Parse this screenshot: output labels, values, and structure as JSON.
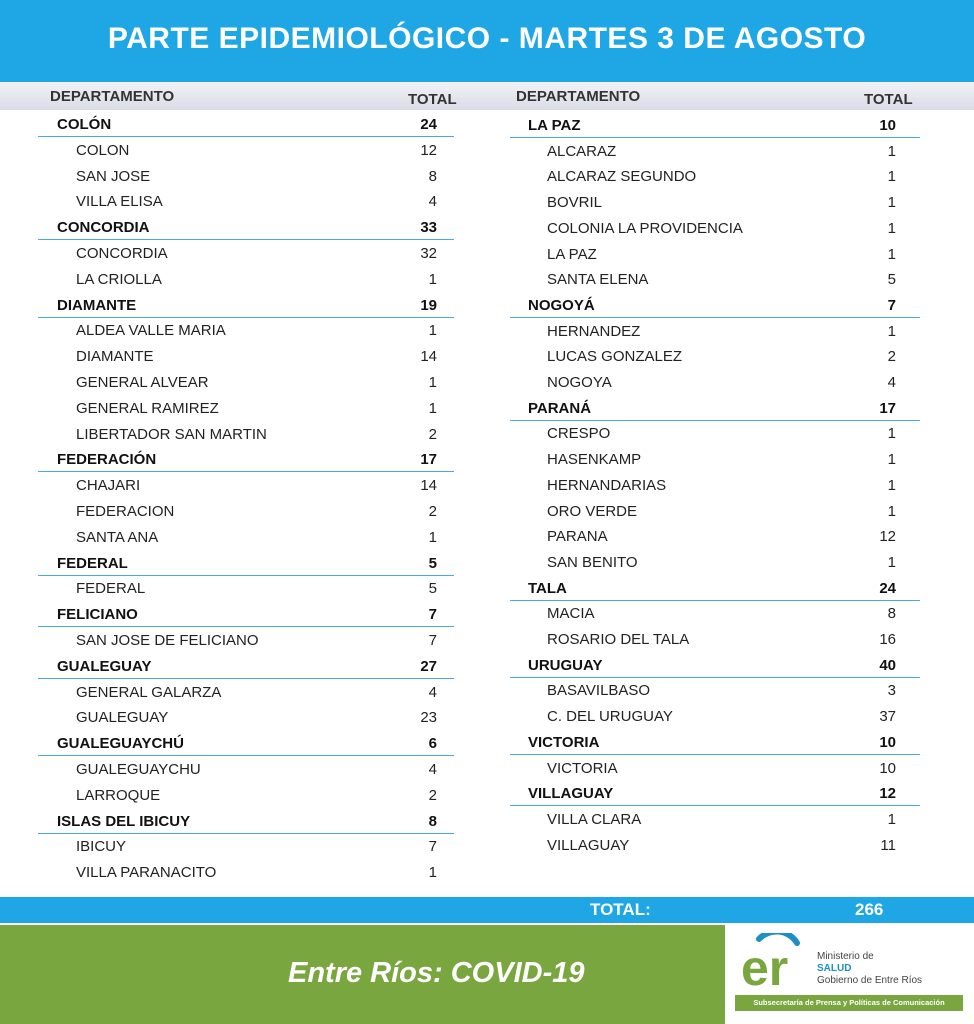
{
  "title": "PARTE EPIDEMIOLÓGICO - MARTES 3 DE AGOSTO",
  "headers": {
    "departamento": "DEPARTAMENTO",
    "total": "TOTAL"
  },
  "left_rows": [
    {
      "name": "COLÓN",
      "value": "24",
      "dept": true
    },
    {
      "name": "COLON",
      "value": "12"
    },
    {
      "name": "SAN JOSE",
      "value": "8"
    },
    {
      "name": "VILLA ELISA",
      "value": "4"
    },
    {
      "name": "CONCORDIA",
      "value": "33",
      "dept": true
    },
    {
      "name": "CONCORDIA",
      "value": "32"
    },
    {
      "name": "LA CRIOLLA",
      "value": "1"
    },
    {
      "name": "DIAMANTE",
      "value": "19",
      "dept": true
    },
    {
      "name": "ALDEA VALLE MARIA",
      "value": "1"
    },
    {
      "name": "DIAMANTE",
      "value": "14"
    },
    {
      "name": "GENERAL ALVEAR",
      "value": "1"
    },
    {
      "name": "GENERAL RAMIREZ",
      "value": "1"
    },
    {
      "name": "LIBERTADOR SAN MARTIN",
      "value": "2"
    },
    {
      "name": "FEDERACIÓN",
      "value": "17",
      "dept": true
    },
    {
      "name": "CHAJARI",
      "value": "14"
    },
    {
      "name": "FEDERACION",
      "value": "2"
    },
    {
      "name": "SANTA ANA",
      "value": "1"
    },
    {
      "name": "FEDERAL",
      "value": "5",
      "dept": true
    },
    {
      "name": "FEDERAL",
      "value": "5"
    },
    {
      "name": "FELICIANO",
      "value": "7",
      "dept": true
    },
    {
      "name": "SAN JOSE DE FELICIANO",
      "value": "7"
    },
    {
      "name": "GUALEGUAY",
      "value": "27",
      "dept": true
    },
    {
      "name": "GENERAL GALARZA",
      "value": "4"
    },
    {
      "name": "GUALEGUAY",
      "value": "23"
    },
    {
      "name": "GUALEGUAYCHÚ",
      "value": "6",
      "dept": true
    },
    {
      "name": "GUALEGUAYCHU",
      "value": "4"
    },
    {
      "name": "LARROQUE",
      "value": "2"
    },
    {
      "name": "ISLAS DEL IBICUY",
      "value": "8",
      "dept": true
    },
    {
      "name": "IBICUY",
      "value": "7"
    },
    {
      "name": "VILLA PARANACITO",
      "value": "1"
    }
  ],
  "right_rows": [
    {
      "name": "LA PAZ",
      "value": "10",
      "dept": true
    },
    {
      "name": "ALCARAZ",
      "value": "1"
    },
    {
      "name": "ALCARAZ SEGUNDO",
      "value": "1"
    },
    {
      "name": "BOVRIL",
      "value": "1"
    },
    {
      "name": "COLONIA LA PROVIDENCIA",
      "value": "1"
    },
    {
      "name": "LA PAZ",
      "value": "1"
    },
    {
      "name": "SANTA ELENA",
      "value": "5"
    },
    {
      "name": "NOGOYÁ",
      "value": "7",
      "dept": true
    },
    {
      "name": "HERNANDEZ",
      "value": "1"
    },
    {
      "name": "LUCAS GONZALEZ",
      "value": "2"
    },
    {
      "name": "NOGOYA",
      "value": "4"
    },
    {
      "name": "PARANÁ",
      "value": "17",
      "dept": true
    },
    {
      "name": "CRESPO",
      "value": "1"
    },
    {
      "name": "HASENKAMP",
      "value": "1"
    },
    {
      "name": "HERNANDARIAS",
      "value": "1"
    },
    {
      "name": "ORO VERDE",
      "value": "1"
    },
    {
      "name": "PARANA",
      "value": "12"
    },
    {
      "name": "SAN BENITO",
      "value": "1"
    },
    {
      "name": "TALA",
      "value": "24",
      "dept": true
    },
    {
      "name": "MACIA",
      "value": "8"
    },
    {
      "name": "ROSARIO DEL TALA",
      "value": "16"
    },
    {
      "name": "URUGUAY",
      "value": "40",
      "dept": true
    },
    {
      "name": "BASAVILBASO",
      "value": "3"
    },
    {
      "name": "C. DEL URUGUAY",
      "value": "37"
    },
    {
      "name": "VICTORIA",
      "value": "10",
      "dept": true
    },
    {
      "name": "VICTORIA",
      "value": "10"
    },
    {
      "name": "VILLAGUAY",
      "value": "12",
      "dept": true
    },
    {
      "name": "VILLA CLARA",
      "value": "1"
    },
    {
      "name": "VILLAGUAY",
      "value": "11"
    }
  ],
  "total": {
    "label": "TOTAL:",
    "value": "266"
  },
  "footer": {
    "slogan": "Entre Ríos: COVID-19",
    "logo_mark": "er",
    "logo_line1": "Ministerio de",
    "logo_line2": "SALUD",
    "logo_line3": "Gobierno de Entre Ríos",
    "logo_strip": "Subsecretaría de Prensa y Políticas de Comunicación"
  },
  "colors": {
    "blue": "#1ea7e4",
    "green": "#7aa640",
    "rule": "#4aa9dc"
  }
}
